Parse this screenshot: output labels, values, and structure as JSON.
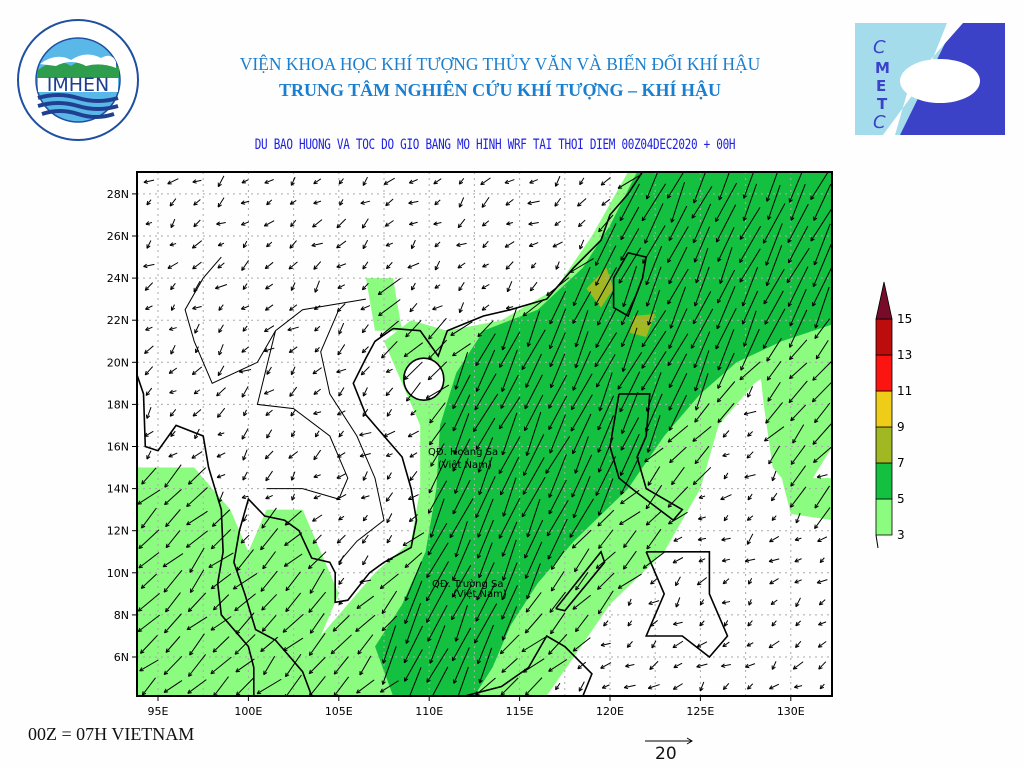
{
  "header": {
    "institute_title": "VIỆN KHOA HỌC KHÍ TƯỢNG THỦY VĂN VÀ BIẾN ĐỔI KHÍ HẬU",
    "center_title": "TRUNG TÂM NGHIÊN CỨU KHÍ TƯỢNG – KHÍ HẬU",
    "left_logo": {
      "text": "IMHEN",
      "ring_top": "VIỆN KHOA HỌC",
      "ring_bottom": "KHÍ TƯỢNG THỦY VĂN VÀ BIẾN ĐỔI KHÍ HẬU"
    },
    "right_logo": {
      "letters": [
        "C",
        "M",
        "E",
        "T",
        "C"
      ]
    }
  },
  "map": {
    "subtitle": "DU BAO HUONG VA TOC DO GIO BANG MO HINH WRF TAI THOI DIEM  00Z04DEC2020 + 00H",
    "lon_ticks": [
      "95E",
      "100E",
      "105E",
      "110E",
      "115E",
      "120E",
      "125E",
      "130E"
    ],
    "lat_ticks": [
      "28N",
      "26N",
      "24N",
      "22N",
      "20N",
      "18N",
      "16N",
      "14N",
      "12N",
      "10N",
      "8N",
      "6N"
    ],
    "place_labels": [
      {
        "line1": "QĐ. Hoàng Sa",
        "line2": "(Việt Nam)"
      },
      {
        "line1": "QĐ. Trường Sa",
        "line2": "(Việt Nam)"
      }
    ],
    "colorbar": {
      "levels": [
        "3",
        "5",
        "7",
        "9",
        "11",
        "13",
        "15"
      ],
      "colors": [
        "#8cfc80",
        "#14c040",
        "#a2b822",
        "#eecc18",
        "#fc1410",
        "#bc0c0c",
        "#780c28"
      ]
    },
    "reference_vector": "20",
    "footnote": "00Z = 07H VIETNAM"
  }
}
